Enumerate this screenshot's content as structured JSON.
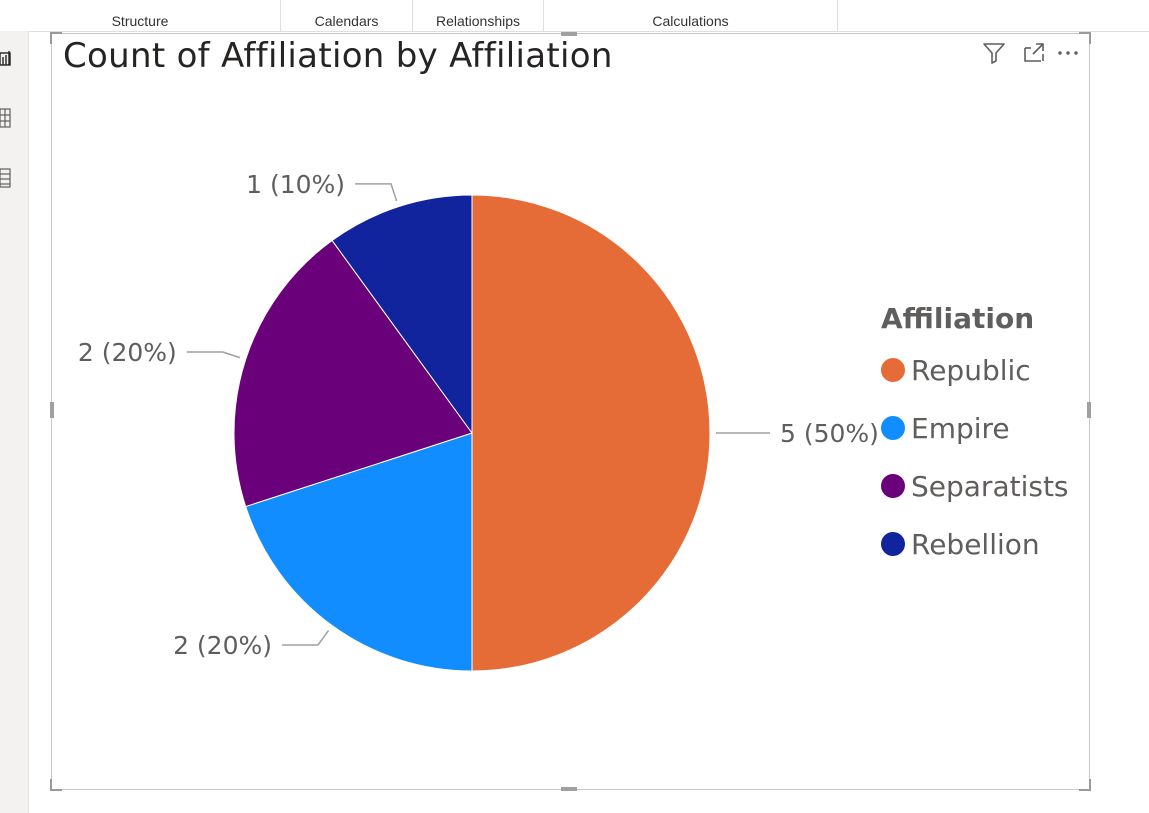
{
  "ribbon": {
    "groups": [
      "Structure",
      "Calendars",
      "Relationships",
      "Calculations"
    ]
  },
  "rail": {
    "icons": [
      "report-view-icon",
      "table-view-icon",
      "model-view-icon"
    ]
  },
  "visual": {
    "header_icons": [
      "filter-icon",
      "focus-mode-icon",
      "more-options-icon"
    ]
  },
  "chart_data": {
    "type": "pie",
    "title": "Count of Affiliation by Affiliation",
    "legend_title": "Affiliation",
    "legend_position": "right",
    "categories": [
      "Republic",
      "Empire",
      "Separatists",
      "Rebellion"
    ],
    "values": [
      5,
      2,
      2,
      1
    ],
    "labels": [
      "5 (50%)",
      "2 (20%)",
      "2 (20%)",
      "1 (10%)"
    ],
    "colors": [
      "#E66C37",
      "#118DFF",
      "#6B007B",
      "#12239E"
    ]
  }
}
